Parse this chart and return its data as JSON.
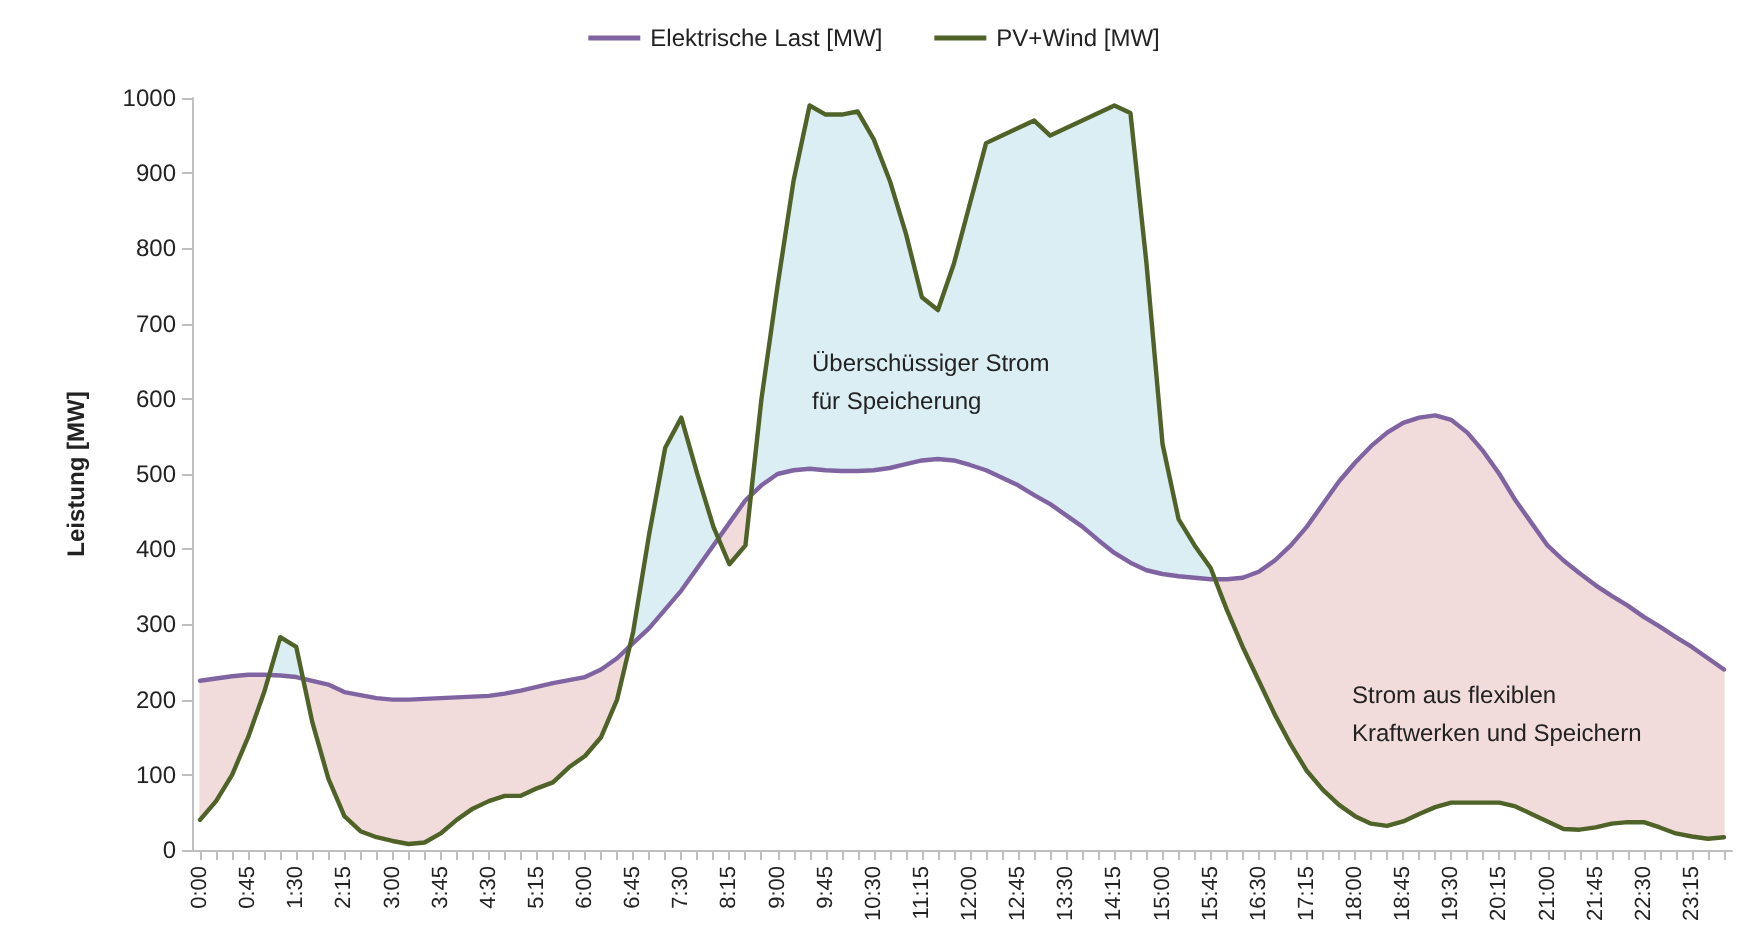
{
  "chart_data": {
    "type": "line",
    "ylabel": "Leistung [MW]",
    "categories": [
      "0:00",
      null,
      null,
      "0:45",
      null,
      null,
      "1:30",
      null,
      null,
      "2:15",
      null,
      null,
      "3:00",
      null,
      null,
      "3:45",
      null,
      null,
      "4:30",
      null,
      null,
      "5:15",
      null,
      null,
      "6:00",
      null,
      null,
      "6:45",
      null,
      null,
      "7:30",
      null,
      null,
      "8:15",
      null,
      null,
      "9:00",
      null,
      null,
      "9:45",
      null,
      null,
      "10:30",
      null,
      null,
      "11:15",
      null,
      null,
      "12:00",
      null,
      null,
      "12:45",
      null,
      null,
      "13:30",
      null,
      null,
      "14:15",
      null,
      null,
      "15:00",
      null,
      null,
      "15:45",
      null,
      null,
      "16:30",
      null,
      null,
      "17:15",
      null,
      null,
      "18:00",
      null,
      null,
      "18:45",
      null,
      null,
      "19:30",
      null,
      null,
      "20:15",
      null,
      null,
      "21:00",
      null,
      null,
      "21:45",
      null,
      null,
      "22:30",
      null,
      null,
      "23:15",
      null,
      null
    ],
    "series": [
      {
        "name": "Elektrische Last [MW]",
        "color": "#8064a2",
        "values": [
          225,
          228,
          231,
          233,
          233,
          232,
          230,
          225,
          220,
          210,
          206,
          202,
          200,
          200,
          201,
          202,
          203,
          204,
          205,
          208,
          212,
          217,
          222,
          226,
          230,
          240,
          255,
          275,
          295,
          320,
          345,
          375,
          405,
          435,
          465,
          485,
          500,
          505,
          507,
          505,
          504,
          504,
          505,
          508,
          513,
          518,
          520,
          518,
          512,
          505,
          495,
          485,
          472,
          460,
          445,
          430,
          412,
          395,
          382,
          372,
          367,
          364,
          362,
          360,
          360,
          362,
          370,
          385,
          405,
          430,
          460,
          490,
          515,
          537,
          555,
          568,
          575,
          578,
          572,
          555,
          530,
          500,
          465,
          435,
          405,
          385,
          368,
          352,
          338,
          325,
          310,
          297,
          283,
          270,
          255,
          240
        ]
      },
      {
        "name": "PV+Wind [MW]",
        "color": "#4f6228",
        "values": [
          40,
          65,
          100,
          150,
          210,
          283,
          270,
          170,
          95,
          45,
          25,
          17,
          12,
          8,
          10,
          22,
          40,
          55,
          65,
          72,
          72,
          82,
          90,
          110,
          125,
          150,
          200,
          290,
          420,
          535,
          575,
          500,
          430,
          380,
          405,
          600,
          750,
          890,
          990,
          978,
          978,
          982,
          945,
          890,
          820,
          735,
          718,
          780,
          860,
          940,
          950,
          960,
          970,
          950,
          960,
          970,
          980,
          990,
          980,
          780,
          540,
          440,
          405,
          375,
          320,
          270,
          225,
          180,
          140,
          105,
          80,
          60,
          45,
          35,
          32,
          38,
          48,
          57,
          63,
          63,
          63,
          63,
          58,
          48,
          38,
          28,
          27,
          30,
          35,
          37,
          37,
          30,
          22,
          18,
          15,
          17
        ]
      }
    ],
    "ylim": [
      0,
      1000
    ],
    "yticks": [
      0,
      100,
      200,
      300,
      400,
      500,
      600,
      700,
      800,
      900,
      1000
    ],
    "legend": "top",
    "grid": false,
    "marker": "none",
    "line_style": "solid",
    "annotations": [
      "Überschüssiger Strom für Speicherung",
      "Strom aus flexiblen Kraftwerken und Speichern"
    ]
  }
}
